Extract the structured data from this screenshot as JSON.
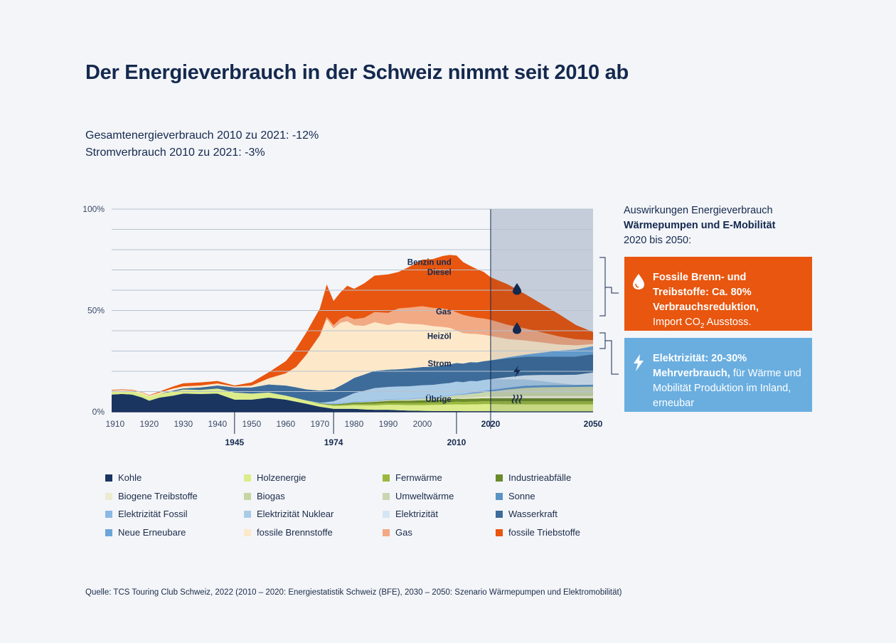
{
  "title": "Der Energieverbrauch in der Schweiz nimmt seit 2010 ab",
  "subtitle1": "Gesamtenergieverbrauch 2010 zu 2021: -12%",
  "subtitle2": "Stromverbrauch 2010 zu 2021: -3%",
  "panel": {
    "line1": "Auswirkungen Energieverbrauch",
    "line2": "Wärmepumpen und E-Mobilität",
    "line3": "2020 bis 2050:"
  },
  "box_fossil": {
    "bold": "Fossile Brenn- und Treibstoffe: Ca. 80% Verbrauchsreduktion,",
    "rest_pre": "Import CO",
    "rest_sub": "2",
    "rest_post": " Ausstoss."
  },
  "box_electric": {
    "bold": "Elektrizität: 20-30% Mehrverbrauch,",
    "rest": " für Wärme und Mobilität Produktion im Inland, erneubar"
  },
  "colors": {
    "kohle": "#1a3560",
    "holz": "#dcec8a",
    "fernwaerme": "#9ab83e",
    "industrie": "#6b8a2a",
    "biogene": "#ecebd2",
    "biogas": "#c5d5a3",
    "umwelt": "#cad6b0",
    "sonne": "#5b92c4",
    "elfossil": "#8bb8e4",
    "elnuklear": "#aacbe6",
    "elektrizitaet": "#d4e6f3",
    "wasser": "#3d6c9a",
    "neue": "#6aa6d8",
    "brenn": "#fde9ca",
    "gas": "#f2aa84",
    "treib": "#e8560f",
    "forecast_bg": "#d9e0e9",
    "grid": "#b7c2d0",
    "orange_box": "#e8560f",
    "blue_box": "#6aaee0"
  },
  "legend": [
    {
      "key": "kohle",
      "label": "Kohle"
    },
    {
      "key": "holz",
      "label": "Holzenergie"
    },
    {
      "key": "fernwaerme",
      "label": "Fernwärme"
    },
    {
      "key": "industrie",
      "label": "Industrieabfälle"
    },
    {
      "key": "biogene",
      "label": "Biogene Treibstoffe"
    },
    {
      "key": "biogas",
      "label": "Biogas"
    },
    {
      "key": "umwelt",
      "label": "Umweltwärme"
    },
    {
      "key": "sonne",
      "label": "Sonne"
    },
    {
      "key": "elfossil",
      "label": "Elektrizität Fossil"
    },
    {
      "key": "elnuklear",
      "label": "Elektrizität Nuklear"
    },
    {
      "key": "elektrizitaet",
      "label": "Elektrizität"
    },
    {
      "key": "wasser",
      "label": "Wasserkraft"
    },
    {
      "key": "neue",
      "label": "Neue Erneubare"
    },
    {
      "key": "brenn",
      "label": "fossile Brennstoffe"
    },
    {
      "key": "gas",
      "label": "Gas"
    },
    {
      "key": "treib",
      "label": "fossile Triebstoffe"
    }
  ],
  "source": "Quelle: TCS Touring Club Schweiz, 2022 (2010 – 2020: Energiestatistik Schweiz (BFE), 2030 – 2050: Szenario Wärmepumpen und Elektromobilität)",
  "chart_data": {
    "type": "area",
    "stacked": true,
    "x_range": [
      1909,
      2050
    ],
    "ylim": [
      0,
      100
    ],
    "y_ticks": [
      {
        "v": 0,
        "label": "0%"
      },
      {
        "v": 50,
        "label": "50%"
      },
      {
        "v": 100,
        "label": "100%"
      }
    ],
    "gridlines": [
      10,
      20,
      30,
      40,
      50,
      60,
      70,
      80,
      90,
      100
    ],
    "x_ticks": [
      {
        "v": 1910,
        "label": "1910"
      },
      {
        "v": 1920,
        "label": "1920"
      },
      {
        "v": 1930,
        "label": "1930"
      },
      {
        "v": 1940,
        "label": "1940"
      },
      {
        "v": 1950,
        "label": "1950"
      },
      {
        "v": 1960,
        "label": "1960"
      },
      {
        "v": 1970,
        "label": "1970"
      },
      {
        "v": 1980,
        "label": "1980"
      },
      {
        "v": 1990,
        "label": "1990"
      },
      {
        "v": 2000,
        "label": "2000"
      }
    ],
    "x_ticks_bold": [
      {
        "v": 2020,
        "label": "2020"
      },
      {
        "v": 2050,
        "label": "2050"
      }
    ],
    "marker_years": [
      {
        "v": 1945,
        "label": "1945"
      },
      {
        "v": 1974,
        "label": "1974"
      },
      {
        "v": 2010,
        "label": "2010"
      }
    ],
    "forecast_start": 2020,
    "x": [
      1909,
      1912,
      1915,
      1918,
      1920,
      1923,
      1927,
      1930,
      1935,
      1940,
      1945,
      1950,
      1955,
      1960,
      1963,
      1966,
      1970,
      1972,
      1974,
      1976,
      1978,
      1980,
      1983,
      1986,
      1990,
      1993,
      1996,
      2000,
      2003,
      2006,
      2008,
      2010,
      2012,
      2014,
      2016,
      2018,
      2020,
      2025,
      2030,
      2035,
      2040,
      2045,
      2050
    ],
    "series": [
      {
        "key": "kohle",
        "name": "Kohle",
        "values": [
          8.5,
          8.8,
          8.5,
          7,
          5.5,
          7,
          8,
          9,
          8.8,
          9,
          6,
          6,
          7,
          6,
          5,
          4,
          2.5,
          2,
          1.5,
          1.5,
          1.5,
          1.5,
          1.2,
          1,
          1,
          0.8,
          0.6,
          0.5,
          0.4,
          0.4,
          0.4,
          0.4,
          0.3,
          0.3,
          0.3,
          0.3,
          0.3,
          0.2,
          0.2,
          0.2,
          0.2,
          0.2,
          0.2
        ]
      },
      {
        "key": "holz",
        "name": "Holzenergie",
        "values": [
          1.5,
          1.5,
          1.5,
          2,
          2,
          2,
          2,
          2,
          2,
          2.5,
          3.5,
          3,
          2.5,
          2,
          1.8,
          1.6,
          1.4,
          1.4,
          1.5,
          1.5,
          1.6,
          1.8,
          2,
          2.2,
          2.5,
          2.6,
          2.7,
          2.8,
          3,
          3.1,
          3.2,
          3.3,
          3.3,
          3.4,
          3.4,
          3.5,
          3.5,
          3.5,
          3.5,
          3.5,
          3.5,
          3.5,
          3.5
        ]
      },
      {
        "key": "fernwaerme",
        "name": "Fernwärme",
        "values": [
          0,
          0,
          0,
          0,
          0,
          0,
          0,
          0,
          0,
          0,
          0,
          0,
          0,
          0,
          0,
          0,
          0.1,
          0.2,
          0.3,
          0.4,
          0.5,
          0.6,
          0.7,
          0.8,
          0.9,
          1,
          1,
          1.1,
          1.1,
          1.2,
          1.2,
          1.3,
          1.3,
          1.3,
          1.4,
          1.4,
          1.4,
          1.5,
          1.5,
          1.5,
          1.5,
          1.5,
          1.5
        ]
      },
      {
        "key": "industrie",
        "name": "Industrieabfälle",
        "values": [
          0,
          0,
          0,
          0,
          0,
          0,
          0,
          0,
          0,
          0,
          0,
          0,
          0,
          0,
          0,
          0,
          0.2,
          0.3,
          0.4,
          0.5,
          0.6,
          0.7,
          0.8,
          0.9,
          1,
          1.1,
          1.2,
          1.3,
          1.3,
          1.4,
          1.4,
          1.5,
          1.5,
          1.5,
          1.5,
          1.5,
          1.5,
          1.5,
          1.5,
          1.5,
          1.5,
          1.5,
          1.5
        ]
      },
      {
        "key": "biogene",
        "name": "Biogene Treibstoffe",
        "values": [
          0,
          0,
          0,
          0,
          0,
          0,
          0,
          0,
          0,
          0,
          0,
          0,
          0,
          0,
          0,
          0,
          0,
          0,
          0,
          0,
          0,
          0,
          0,
          0,
          0,
          0,
          0,
          0,
          0,
          0.1,
          0.2,
          0.3,
          0.4,
          0.5,
          0.6,
          0.7,
          0.8,
          1,
          1.2,
          1.2,
          1.2,
          1.2,
          1.2
        ]
      },
      {
        "key": "biogas",
        "name": "Biogas",
        "values": [
          0,
          0,
          0,
          0,
          0,
          0,
          0,
          0,
          0,
          0,
          0,
          0,
          0,
          0,
          0,
          0,
          0,
          0,
          0,
          0,
          0,
          0,
          0,
          0,
          0,
          0,
          0,
          0.1,
          0.1,
          0.2,
          0.2,
          0.3,
          0.3,
          0.4,
          0.4,
          0.5,
          0.5,
          0.7,
          0.9,
          1,
          1,
          1,
          1
        ]
      },
      {
        "key": "umwelt",
        "name": "Umweltwärme",
        "values": [
          0,
          0,
          0,
          0,
          0,
          0,
          0,
          0,
          0,
          0,
          0,
          0,
          0,
          0,
          0,
          0,
          0,
          0,
          0,
          0,
          0,
          0.1,
          0.2,
          0.3,
          0.4,
          0.5,
          0.6,
          0.8,
          0.9,
          1,
          1.1,
          1.2,
          1.3,
          1.5,
          1.6,
          1.8,
          2,
          2.6,
          3,
          3.2,
          3.3,
          3.4,
          3.5
        ]
      },
      {
        "key": "sonne",
        "name": "Sonne",
        "values": [
          0,
          0,
          0,
          0,
          0,
          0,
          0,
          0,
          0,
          0,
          0,
          0,
          0,
          0,
          0,
          0,
          0,
          0,
          0,
          0,
          0,
          0,
          0,
          0,
          0,
          0,
          0,
          0,
          0,
          0,
          0,
          0.1,
          0.2,
          0.3,
          0.4,
          0.5,
          0.6,
          0.8,
          1,
          1,
          1,
          1,
          1
        ]
      },
      {
        "key": "elfossil",
        "name": "Elektrizität Fossil",
        "values": [
          0,
          0,
          0,
          0,
          0,
          0,
          0,
          0,
          0,
          0,
          0,
          0,
          0,
          0,
          0,
          0,
          0.3,
          0.4,
          0.5,
          0.5,
          0.5,
          0.5,
          0.5,
          0.5,
          0.5,
          0.5,
          0.5,
          0.5,
          0.5,
          0.5,
          0.5,
          0.5,
          0.5,
          0.5,
          0.5,
          0.5,
          0.5,
          0.3,
          0.2,
          0.1,
          0,
          0,
          0
        ]
      },
      {
        "key": "elnuklear",
        "name": "Elektrizität Nuklear",
        "values": [
          0,
          0,
          0,
          0,
          0,
          0,
          0,
          0,
          0,
          0,
          0,
          0,
          0,
          0,
          0,
          0,
          0,
          0.5,
          1,
          2,
          3,
          4,
          5,
          6,
          6,
          6,
          6,
          6,
          6,
          6,
          6,
          6,
          5.5,
          5.5,
          5,
          5,
          5,
          4,
          3,
          2,
          1,
          0,
          0
        ]
      },
      {
        "key": "elektrizitaet",
        "name": "Elektrizität",
        "values": [
          0,
          0,
          0,
          0,
          0,
          0,
          0,
          0,
          0,
          0,
          0,
          0,
          0,
          0,
          0,
          0,
          0,
          0,
          0,
          0,
          0,
          0,
          0,
          0,
          0,
          0,
          0,
          0,
          0,
          0,
          0,
          0,
          0,
          0,
          0,
          0,
          0,
          1,
          2,
          3,
          4,
          5,
          6
        ]
      },
      {
        "key": "wasser",
        "name": "Wasserkraft",
        "values": [
          0,
          0,
          0,
          0,
          0,
          0,
          0.5,
          0.6,
          1.2,
          1.5,
          2.5,
          3,
          4,
          5,
          5.3,
          5.5,
          6,
          6,
          6,
          6.5,
          7,
          7.5,
          8,
          8.5,
          8.5,
          8.5,
          8.8,
          9,
          9,
          9,
          9.2,
          9.2,
          9.2,
          9.3,
          9.3,
          9.3,
          9.3,
          9.3,
          9.2,
          9,
          9,
          9,
          9
        ]
      },
      {
        "key": "neue",
        "name": "Neue Erneubare",
        "values": [
          0,
          0,
          0,
          0,
          0,
          0,
          0,
          0,
          0,
          0,
          0,
          0,
          0,
          0,
          0,
          0,
          0,
          0,
          0,
          0,
          0,
          0,
          0,
          0,
          0,
          0,
          0,
          0,
          0,
          0,
          0,
          0,
          0,
          0,
          0,
          0,
          0,
          0.5,
          1,
          2,
          3,
          3.5,
          4
        ]
      },
      {
        "key": "brenn",
        "name": "fossile Brennstoffe",
        "values": [
          0.5,
          0.5,
          0.5,
          0.5,
          0.5,
          0.5,
          1,
          1,
          1,
          1,
          0.5,
          1,
          3,
          6,
          10,
          17,
          27,
          35,
          30,
          31,
          30,
          26,
          24,
          24,
          22,
          23,
          22,
          21,
          20,
          19,
          18,
          16,
          15,
          14,
          14,
          13,
          12,
          9,
          7,
          5,
          3,
          2,
          1
        ]
      },
      {
        "key": "gas",
        "name": "Gas",
        "values": [
          0,
          0,
          0,
          0,
          0,
          0,
          0,
          0,
          0,
          0,
          0,
          0,
          0,
          0,
          0,
          0,
          0.5,
          1,
          1.5,
          2,
          2.5,
          3,
          4,
          5,
          6,
          7,
          8,
          9,
          9,
          9,
          9,
          9,
          9,
          8.5,
          8,
          8,
          8,
          7,
          6,
          5,
          4,
          3,
          2
        ]
      },
      {
        "key": "treib",
        "name": "fossile Triebstoffe",
        "values": [
          0.3,
          0.3,
          0.3,
          0.2,
          0.2,
          0.5,
          1,
          1.5,
          1.5,
          1.2,
          0.5,
          1.5,
          3,
          6,
          9,
          11,
          13,
          16,
          12,
          13,
          15,
          15,
          17,
          18,
          19,
          18,
          20,
          23,
          24,
          26,
          27,
          28,
          26,
          25,
          24,
          23,
          21,
          20,
          17,
          14,
          11,
          7,
          4
        ]
      }
    ],
    "area_labels": [
      {
        "label": "Benzin und",
        "x": 2008.5,
        "y": 72.5
      },
      {
        "label": "Diesel",
        "x": 2008.5,
        "y": 67.5
      },
      {
        "label": "Gas",
        "x": 2008.5,
        "y": 48
      },
      {
        "label": "Heizöl",
        "x": 2008.5,
        "y": 36
      },
      {
        "label": "Strom",
        "x": 2008.5,
        "y": 22.5
      },
      {
        "label": "Übrige",
        "x": 2008.5,
        "y": 5
      }
    ]
  }
}
